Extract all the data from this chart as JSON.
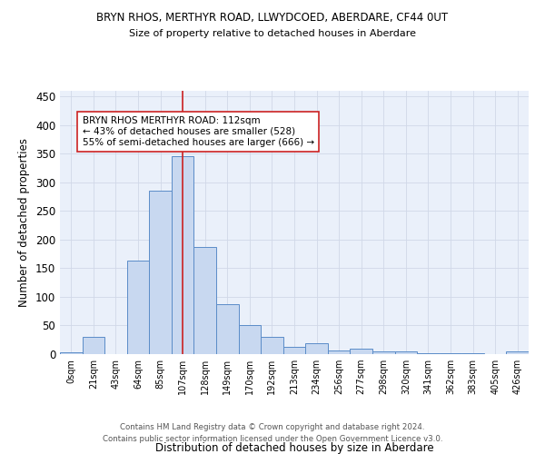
{
  "title": "BRYN RHOS, MERTHYR ROAD, LLWYDCOED, ABERDARE, CF44 0UT",
  "subtitle": "Size of property relative to detached houses in Aberdare",
  "xlabel": "Distribution of detached houses by size in Aberdare",
  "ylabel": "Number of detached properties",
  "footer_line1": "Contains HM Land Registry data © Crown copyright and database right 2024.",
  "footer_line2": "Contains public sector information licensed under the Open Government Licence v3.0.",
  "bin_labels": [
    "0sqm",
    "21sqm",
    "43sqm",
    "64sqm",
    "85sqm",
    "107sqm",
    "128sqm",
    "149sqm",
    "170sqm",
    "192sqm",
    "213sqm",
    "234sqm",
    "256sqm",
    "277sqm",
    "298sqm",
    "320sqm",
    "341sqm",
    "362sqm",
    "383sqm",
    "405sqm",
    "426sqm"
  ],
  "bar_heights": [
    3,
    30,
    0,
    163,
    285,
    346,
    187,
    88,
    50,
    30,
    13,
    19,
    7,
    10,
    4,
    5,
    2,
    1,
    1,
    0,
    4
  ],
  "bar_color": "#c8d8f0",
  "bar_edge_color": "#5b8cc8",
  "grid_color": "#d0d8e8",
  "bg_color": "#eaf0fa",
  "property_bin_index": 5,
  "vline_color": "#cc2222",
  "annotation_text": "BRYN RHOS MERTHYR ROAD: 112sqm\n← 43% of detached houses are smaller (528)\n55% of semi-detached houses are larger (666) →",
  "annotation_box_color": "white",
  "annotation_box_edge": "#cc2222",
  "ylim": [
    0,
    460
  ],
  "yticks": [
    0,
    50,
    100,
    150,
    200,
    250,
    300,
    350,
    400,
    450
  ]
}
